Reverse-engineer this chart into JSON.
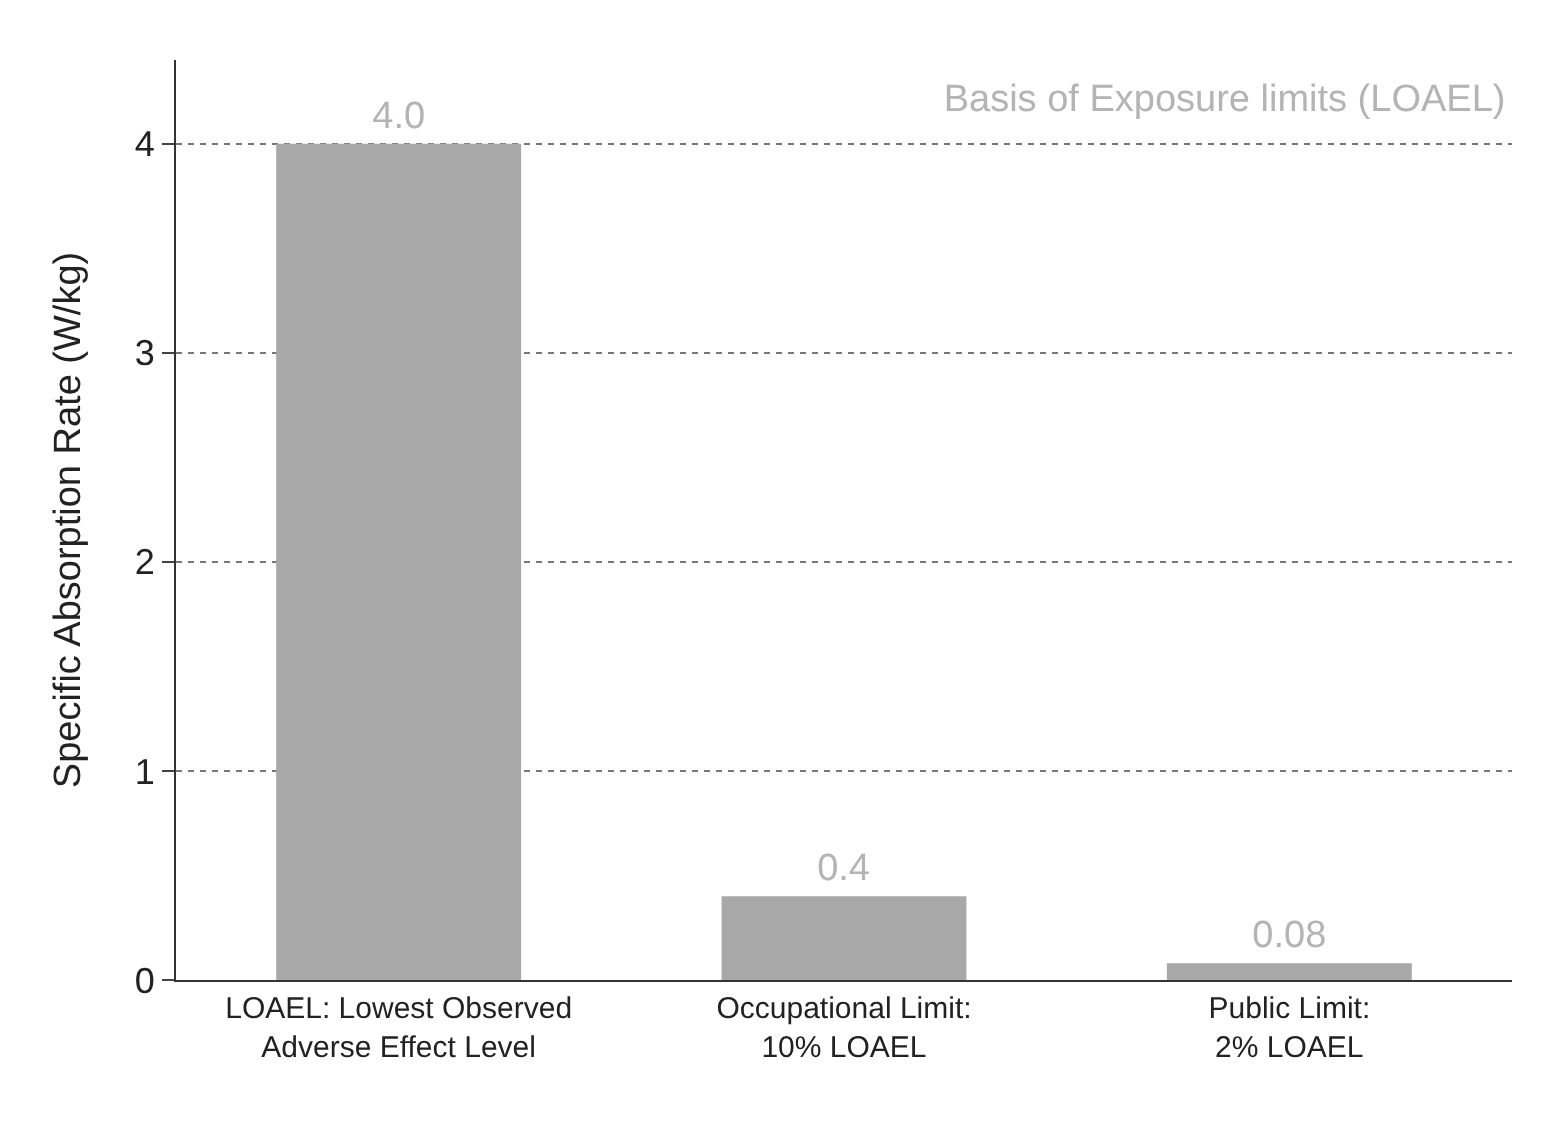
{
  "chart_data": {
    "type": "bar",
    "title": "Basis of Exposure limits (LOAEL)",
    "ylabel": "Specific Absorption Rate (W/kg)",
    "categories": [
      "LOAEL: Lowest Observed\nAdverse Effect Level",
      "Occupational Limit:\n10% LOAEL",
      "Public Limit:\n2% LOAEL"
    ],
    "values": [
      4.0,
      0.4,
      0.08
    ],
    "value_labels": [
      "4.0",
      "0.4",
      "0.08"
    ],
    "color": "#a8a8a8",
    "ylim": [
      0,
      4.4
    ],
    "yticks": [
      0,
      1,
      2,
      3,
      4
    ],
    "grid": "y"
  }
}
